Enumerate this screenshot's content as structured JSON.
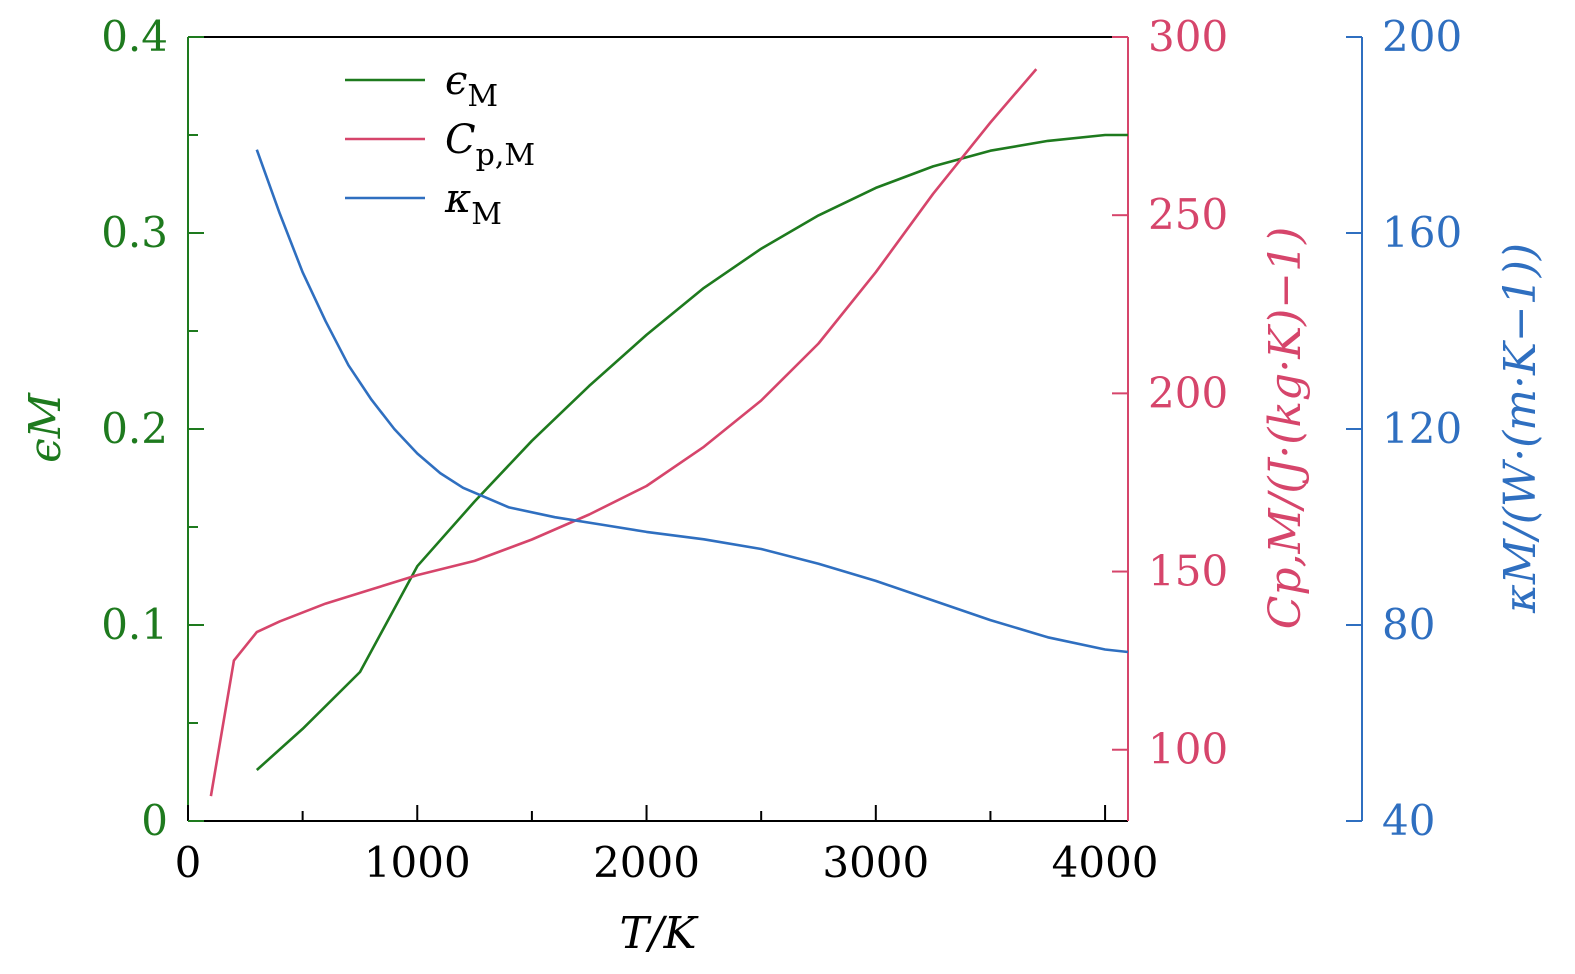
{
  "chart_data": {
    "type": "line",
    "x": {
      "label": "T/K",
      "range": [
        0,
        4100
      ],
      "ticks": [
        0,
        1000,
        2000,
        3000,
        4000
      ],
      "tick_labels": [
        "0",
        "1000",
        "2000",
        "3000",
        "4000"
      ]
    },
    "axes": {
      "left": {
        "label": "ϵM",
        "color": "#1e7a1e",
        "range": [
          0,
          0.4
        ],
        "ticks": [
          0,
          0.1,
          0.2,
          0.3,
          0.4
        ],
        "tick_labels": [
          "0",
          "0.1",
          "0.2",
          "0.3",
          "0.4"
        ]
      },
      "right1": {
        "label": "Cp,M/(J·(kg·K)−1)",
        "color": "#d6456b",
        "range": [
          80,
          300
        ],
        "ticks": [
          100,
          150,
          200,
          250,
          300
        ],
        "tick_labels": [
          "100",
          "150",
          "200",
          "250",
          "300"
        ]
      },
      "right2": {
        "label": "κM/(W·(m·K−1))",
        "color": "#2f6fc0",
        "range": [
          40,
          200
        ],
        "ticks": [
          40,
          80,
          120,
          160,
          200
        ],
        "tick_labels": [
          "40",
          "80",
          "120",
          "160",
          "200"
        ]
      }
    },
    "series": [
      {
        "name": "ϵM",
        "axis": "left",
        "color": "#1e7a1e",
        "points": [
          [
            300,
            0.026
          ],
          [
            500,
            0.047
          ],
          [
            750,
            0.076
          ],
          [
            1000,
            0.13
          ],
          [
            1250,
            0.163
          ],
          [
            1500,
            0.194
          ],
          [
            1750,
            0.222
          ],
          [
            2000,
            0.248
          ],
          [
            2250,
            0.272
          ],
          [
            2500,
            0.292
          ],
          [
            2750,
            0.309
          ],
          [
            3000,
            0.323
          ],
          [
            3250,
            0.334
          ],
          [
            3500,
            0.342
          ],
          [
            3750,
            0.347
          ],
          [
            4000,
            0.35
          ],
          [
            4100,
            0.35
          ]
        ]
      },
      {
        "name": "Cp,M",
        "axis": "right1",
        "color": "#d6456b",
        "points": [
          [
            100,
            87
          ],
          [
            200,
            125
          ],
          [
            300,
            133
          ],
          [
            400,
            136
          ],
          [
            600,
            141
          ],
          [
            800,
            145
          ],
          [
            1000,
            149
          ],
          [
            1250,
            153
          ],
          [
            1500,
            159
          ],
          [
            1750,
            166
          ],
          [
            2000,
            174
          ],
          [
            2250,
            185
          ],
          [
            2500,
            198
          ],
          [
            2750,
            214
          ],
          [
            3000,
            234
          ],
          [
            3250,
            256
          ],
          [
            3500,
            276
          ],
          [
            3700,
            291
          ]
        ]
      },
      {
        "name": "κM",
        "axis": "right2",
        "color": "#2f6fc0",
        "points": [
          [
            300,
            177
          ],
          [
            400,
            164
          ],
          [
            500,
            152
          ],
          [
            600,
            142
          ],
          [
            700,
            133
          ],
          [
            800,
            126
          ],
          [
            900,
            120
          ],
          [
            1000,
            115
          ],
          [
            1100,
            111
          ],
          [
            1200,
            108
          ],
          [
            1300,
            106
          ],
          [
            1400,
            104
          ],
          [
            1600,
            102
          ],
          [
            1800,
            100.5
          ],
          [
            2000,
            99
          ],
          [
            2250,
            97.5
          ],
          [
            2500,
            95.5
          ],
          [
            2750,
            92.5
          ],
          [
            3000,
            89
          ],
          [
            3250,
            85
          ],
          [
            3500,
            81
          ],
          [
            3750,
            77.5
          ],
          [
            4000,
            75
          ],
          [
            4100,
            74.5
          ]
        ]
      }
    ],
    "legend": {
      "position": "top-left",
      "entries": [
        {
          "name": "ϵ",
          "sub": "M",
          "color": "#1e7a1e"
        },
        {
          "name": "C",
          "sub": "p,M",
          "color": "#d6456b"
        },
        {
          "name": "κ",
          "sub": "M",
          "color": "#2f6fc0"
        }
      ]
    },
    "grid": false
  }
}
